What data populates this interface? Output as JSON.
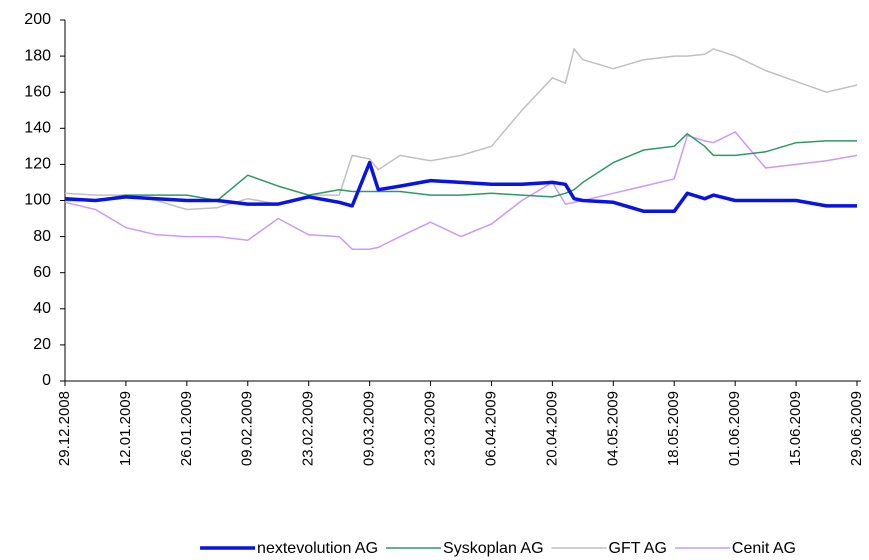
{
  "chart_data": {
    "type": "line",
    "x": [
      "29.12.2008",
      "05.01.2009",
      "12.01.2009",
      "19.01.2009",
      "26.01.2009",
      "02.02.2009",
      "09.02.2009",
      "16.02.2009",
      "23.02.2009",
      "02.03.2009",
      "05.03.2009",
      "09.03.2009",
      "11.03.2009",
      "16.03.2009",
      "23.03.2009",
      "30.03.2009",
      "06.04.2009",
      "13.04.2009",
      "20.04.2009",
      "23.04.2009",
      "25.04.2009",
      "27.04.2009",
      "04.05.2009",
      "11.05.2009",
      "18.05.2009",
      "21.05.2009",
      "25.05.2009",
      "27.05.2009",
      "01.06.2009",
      "08.06.2009",
      "15.06.2009",
      "22.06.2009",
      "29.06.2009"
    ],
    "series": [
      {
        "name": "nextevolution AG",
        "color": "#0a14e0",
        "values": [
          101,
          100,
          102,
          101,
          100,
          100,
          98,
          98,
          102,
          99,
          97,
          121,
          106,
          108,
          111,
          110,
          109,
          109,
          110,
          109,
          101,
          100,
          99,
          94,
          94,
          104,
          101,
          103,
          100,
          100,
          100,
          97,
          97
        ]
      },
      {
        "name": "Syskoplan AG",
        "color": "#2e9a63",
        "values": [
          100,
          100,
          103,
          103,
          103,
          100,
          114,
          108,
          103,
          106,
          105,
          105,
          105,
          105,
          103,
          103,
          104,
          103,
          102,
          104,
          106,
          110,
          121,
          128,
          130,
          137,
          130,
          125,
          125,
          127,
          132,
          133,
          133
        ]
      },
      {
        "name": "GFT AG",
        "color": "#c0c0c0",
        "values": [
          104,
          103,
          103,
          100,
          95,
          96,
          101,
          98,
          103,
          103,
          125,
          123,
          117,
          125,
          122,
          125,
          130,
          150,
          168,
          165,
          184,
          178,
          173,
          178,
          180,
          180,
          181,
          184,
          180,
          172,
          166,
          160,
          164
        ]
      },
      {
        "name": "Cenit AG",
        "color": "#cc99ff",
        "values": [
          99,
          95,
          85,
          81,
          80,
          80,
          78,
          90,
          81,
          80,
          73,
          73,
          74,
          80,
          88,
          80,
          87,
          100,
          110,
          98,
          99,
          100,
          104,
          108,
          112,
          136,
          133,
          132,
          138,
          118,
          120,
          122,
          125
        ]
      }
    ],
    "xlim": [
      "29.12.2008",
      "29.06.2009"
    ],
    "xticks": [
      "29.12.2008",
      "12.01.2009",
      "26.01.2009",
      "09.02.2009",
      "23.02.2009",
      "09.03.2009",
      "23.03.2009",
      "06.04.2009",
      "20.04.2009",
      "04.05.2009",
      "18.05.2009",
      "01.06.2009",
      "15.06.2009",
      "29.06.2009"
    ],
    "ylim": [
      0,
      200
    ],
    "yticks": [
      0,
      20,
      40,
      60,
      80,
      100,
      120,
      140,
      160,
      180,
      200
    ],
    "grid": false,
    "legend": "bottom"
  }
}
